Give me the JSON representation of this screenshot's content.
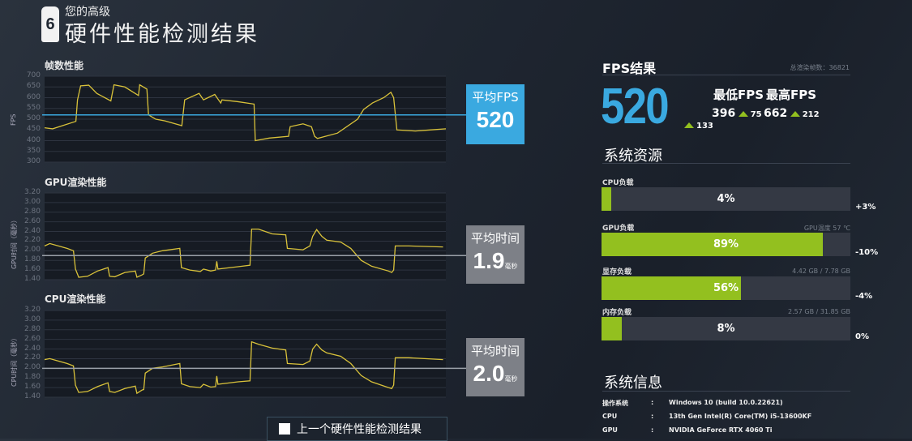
{
  "header": {
    "logo": "6",
    "subtitle": "您的高级",
    "title": "硬件性能检测结果"
  },
  "charts": [
    {
      "id": "fps",
      "title": "帧数性能",
      "ylabel": "FPS",
      "ylim": [
        300,
        700
      ],
      "ticks": [
        "700",
        "650",
        "600",
        "550",
        "500",
        "450",
        "400",
        "350",
        "300"
      ],
      "avg": 520,
      "avg_color": "#3aa9e0",
      "avg_label": "平均FPS",
      "avg_value": "520",
      "avg_unit": ""
    },
    {
      "id": "gpu",
      "title": "GPU渲染性能",
      "ylabel": "GPU时间（毫秒）",
      "ylim": [
        1.4,
        3.2
      ],
      "ticks": [
        "3.20",
        "3.00",
        "2.80",
        "2.60",
        "2.40",
        "2.20",
        "2.00",
        "1.80",
        "1.60",
        "1.40"
      ],
      "avg": 1.9,
      "avg_color": "#9aa0a8",
      "avg_label": "平均时间",
      "avg_value": "1.9",
      "avg_unit": "毫秒"
    },
    {
      "id": "cpu",
      "title": "CPU渲染性能",
      "ylabel": "CPU时间（毫秒）",
      "ylim": [
        1.4,
        3.2
      ],
      "ticks": [
        "3.20",
        "3.00",
        "2.80",
        "2.60",
        "2.40",
        "2.20",
        "2.00",
        "1.80",
        "1.60",
        "1.40"
      ],
      "avg": 2.0,
      "avg_color": "#9aa0a8",
      "avg_label": "平均时间",
      "avg_value": "2.0",
      "avg_unit": "毫秒"
    }
  ],
  "chart_data": [
    {
      "type": "line",
      "title": "帧数性能",
      "ylabel": "FPS",
      "ylim": [
        300,
        700
      ],
      "line_color": "#d9c23a",
      "points": [
        [
          0,
          460
        ],
        [
          2,
          455
        ],
        [
          7.8,
          490
        ],
        [
          8.2,
          590
        ],
        [
          9,
          655
        ],
        [
          11,
          658
        ],
        [
          13,
          620
        ],
        [
          16.5,
          585
        ],
        [
          17.3,
          660
        ],
        [
          20,
          650
        ],
        [
          23.4,
          610
        ],
        [
          23.7,
          660
        ],
        [
          25.5,
          640
        ],
        [
          25.9,
          520
        ],
        [
          27.7,
          500
        ],
        [
          30,
          492
        ],
        [
          34.2,
          470
        ],
        [
          34.9,
          590
        ],
        [
          38.5,
          620
        ],
        [
          39.6,
          590
        ],
        [
          42.4,
          615
        ],
        [
          43.9,
          575
        ],
        [
          44.2,
          590
        ],
        [
          48,
          582
        ],
        [
          52.2,
          570
        ],
        [
          52.5,
          400
        ],
        [
          56,
          412
        ],
        [
          60.8,
          420
        ],
        [
          61.2,
          465
        ],
        [
          64.4,
          478
        ],
        [
          66.5,
          465
        ],
        [
          67.3,
          420
        ],
        [
          68,
          410
        ],
        [
          73,
          435
        ],
        [
          78,
          500
        ],
        [
          79.5,
          545
        ],
        [
          81.7,
          575
        ],
        [
          84.5,
          600
        ],
        [
          86.3,
          625
        ],
        [
          87,
          600
        ],
        [
          87.8,
          450
        ],
        [
          92.4,
          445
        ],
        [
          96,
          450
        ],
        [
          100,
          455
        ]
      ]
    },
    {
      "type": "line",
      "title": "GPU渲染性能",
      "ylabel": "GPU时间（毫秒）",
      "ylim": [
        1.4,
        3.2
      ],
      "line_color": "#d9c23a",
      "points": [
        [
          0,
          2.1
        ],
        [
          1.3,
          2.15
        ],
        [
          5.6,
          2.05
        ],
        [
          7.2,
          2.0
        ],
        [
          7.7,
          1.62
        ],
        [
          8.5,
          1.45
        ],
        [
          10.7,
          1.47
        ],
        [
          13.2,
          1.58
        ],
        [
          15.8,
          1.65
        ],
        [
          16.2,
          1.47
        ],
        [
          17.5,
          1.46
        ],
        [
          20,
          1.55
        ],
        [
          22.6,
          1.58
        ],
        [
          23,
          1.45
        ],
        [
          24.3,
          1.5
        ],
        [
          24.7,
          1.52
        ],
        [
          25.1,
          1.85
        ],
        [
          26.9,
          1.95
        ],
        [
          29.4,
          2.0
        ],
        [
          33.7,
          2.05
        ],
        [
          34.1,
          1.65
        ],
        [
          36.2,
          1.6
        ],
        [
          38.8,
          1.57
        ],
        [
          39.6,
          1.62
        ],
        [
          41.4,
          1.58
        ],
        [
          42.6,
          1.6
        ],
        [
          42.9,
          1.78
        ],
        [
          43.2,
          1.62
        ],
        [
          48.2,
          1.67
        ],
        [
          51.2,
          1.7
        ],
        [
          51.6,
          2.45
        ],
        [
          53.3,
          2.45
        ],
        [
          56.7,
          2.35
        ],
        [
          60.1,
          2.33
        ],
        [
          60.5,
          2.05
        ],
        [
          64.4,
          2.02
        ],
        [
          66.1,
          2.1
        ],
        [
          66.8,
          2.3
        ],
        [
          67.8,
          2.44
        ],
        [
          69.1,
          2.3
        ],
        [
          70.3,
          2.22
        ],
        [
          73.8,
          2.18
        ],
        [
          76.3,
          2.05
        ],
        [
          78.9,
          1.8
        ],
        [
          81.5,
          1.68
        ],
        [
          85.7,
          1.58
        ],
        [
          86.5,
          1.55
        ],
        [
          87,
          1.6
        ],
        [
          87.4,
          2.1
        ],
        [
          90.8,
          2.1
        ],
        [
          99.3,
          2.08
        ]
      ]
    },
    {
      "type": "line",
      "title": "CPU渲染性能",
      "ylabel": "CPU时间（毫秒）",
      "ylim": [
        1.4,
        3.2
      ],
      "line_color": "#d9c23a",
      "points": [
        [
          0,
          2.18
        ],
        [
          1.3,
          2.2
        ],
        [
          5.6,
          2.1
        ],
        [
          7.2,
          2.05
        ],
        [
          7.7,
          1.65
        ],
        [
          8.5,
          1.5
        ],
        [
          10.7,
          1.52
        ],
        [
          13.2,
          1.62
        ],
        [
          15.8,
          1.7
        ],
        [
          16.2,
          1.52
        ],
        [
          17.5,
          1.5
        ],
        [
          20,
          1.58
        ],
        [
          22.6,
          1.63
        ],
        [
          23,
          1.48
        ],
        [
          24.3,
          1.55
        ],
        [
          24.7,
          1.56
        ],
        [
          25.1,
          1.9
        ],
        [
          26.9,
          2.0
        ],
        [
          29.4,
          2.03
        ],
        [
          33.7,
          2.1
        ],
        [
          34.1,
          1.68
        ],
        [
          36.2,
          1.62
        ],
        [
          38.8,
          1.6
        ],
        [
          39.6,
          1.67
        ],
        [
          41.4,
          1.61
        ],
        [
          42.6,
          1.62
        ],
        [
          42.9,
          1.84
        ],
        [
          43.2,
          1.67
        ],
        [
          48.2,
          1.72
        ],
        [
          51.2,
          1.74
        ],
        [
          51.6,
          2.55
        ],
        [
          53.3,
          2.5
        ],
        [
          56.7,
          2.42
        ],
        [
          60.1,
          2.38
        ],
        [
          60.5,
          2.1
        ],
        [
          64.4,
          2.08
        ],
        [
          66.1,
          2.15
        ],
        [
          66.8,
          2.4
        ],
        [
          67.8,
          2.5
        ],
        [
          69.1,
          2.38
        ],
        [
          70.3,
          2.32
        ],
        [
          73.8,
          2.25
        ],
        [
          76.3,
          2.1
        ],
        [
          78.9,
          1.85
        ],
        [
          81.5,
          1.72
        ],
        [
          85.7,
          1.6
        ],
        [
          86.5,
          1.58
        ],
        [
          87,
          1.65
        ],
        [
          87.4,
          2.22
        ],
        [
          90.8,
          2.22
        ],
        [
          99.3,
          2.18
        ]
      ]
    }
  ],
  "fps_result": {
    "title": "FPS结果",
    "total_frames": "总渲染帧数：36821",
    "avg": "520",
    "avg_delta": "133",
    "min_label": "最低FPS",
    "max_label": "最高FPS",
    "min": "396",
    "min_delta": "75",
    "max": "662",
    "max_delta": "212",
    "accent": "#3aa9e0",
    "up_color": "#93c01f"
  },
  "resources": {
    "title": "系统资源",
    "bar_color": "#93c01f",
    "items": [
      {
        "label": "CPU负载",
        "side": "",
        "percent": 4,
        "text": "4%",
        "delta": "+3%"
      },
      {
        "label": "GPU负载",
        "side": "GPU温度 57 ℃",
        "percent": 89,
        "text": "89%",
        "delta": "-10%"
      },
      {
        "label": "显存负载",
        "side": "4.42 GB / 7.78 GB",
        "percent": 56,
        "text": "56%",
        "delta": "-4%"
      },
      {
        "label": "内存负载",
        "side": "2.57 GB / 31.85 GB",
        "percent": 8,
        "text": "8%",
        "delta": "0%"
      }
    ]
  },
  "sysinfo": {
    "title": "系统信息",
    "rows": [
      {
        "key": "操作系统",
        "sep": ":",
        "value": "Windows 10 (build 10.0.22621)"
      },
      {
        "key": "CPU",
        "sep": ":",
        "value": "13th Gen Intel(R) Core(TM) i5-13600KF"
      },
      {
        "key": "GPU",
        "sep": ":",
        "value": "NVIDIA GeForce RTX 4060 Ti"
      }
    ]
  },
  "prev_button": "上一个硬件性能检测结果"
}
